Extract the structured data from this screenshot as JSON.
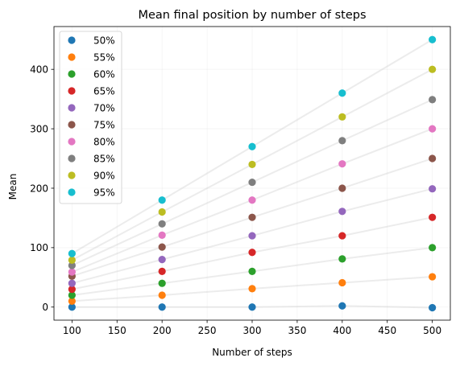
{
  "chart_data": {
    "type": "scatter",
    "title": "Mean final position by number of steps",
    "xlabel": "Number of steps",
    "ylabel": "Mean",
    "xlim": [
      80,
      520
    ],
    "ylim": [
      -22,
      472
    ],
    "xticks": [
      100,
      150,
      200,
      250,
      300,
      350,
      400,
      450,
      500
    ],
    "yticks": [
      0,
      100,
      200,
      300,
      400
    ],
    "grid": true,
    "legend_position": "top-left",
    "x": [
      100,
      200,
      300,
      400,
      500
    ],
    "series": [
      {
        "name": "50%",
        "color": "#1f77b4",
        "values": [
          0,
          0,
          0,
          2,
          -1
        ]
      },
      {
        "name": "55%",
        "color": "#ff7f0e",
        "values": [
          10,
          20,
          31,
          41,
          51
        ]
      },
      {
        "name": "60%",
        "color": "#2ca02c",
        "values": [
          20,
          40,
          60,
          81,
          100
        ]
      },
      {
        "name": "65%",
        "color": "#d62728",
        "values": [
          30,
          60,
          92,
          120,
          151
        ]
      },
      {
        "name": "70%",
        "color": "#9467bd",
        "values": [
          40,
          80,
          120,
          161,
          199
        ]
      },
      {
        "name": "75%",
        "color": "#8c564b",
        "values": [
          52,
          101,
          151,
          200,
          250
        ]
      },
      {
        "name": "80%",
        "color": "#e377c2",
        "values": [
          59,
          121,
          180,
          241,
          300
        ]
      },
      {
        "name": "85%",
        "color": "#7f7f7f",
        "values": [
          70,
          140,
          210,
          280,
          349
        ]
      },
      {
        "name": "90%",
        "color": "#bcbd22",
        "values": [
          79,
          160,
          240,
          320,
          400
        ]
      },
      {
        "name": "95%",
        "color": "#17becf",
        "values": [
          90,
          180,
          270,
          360,
          450
        ]
      }
    ]
  }
}
